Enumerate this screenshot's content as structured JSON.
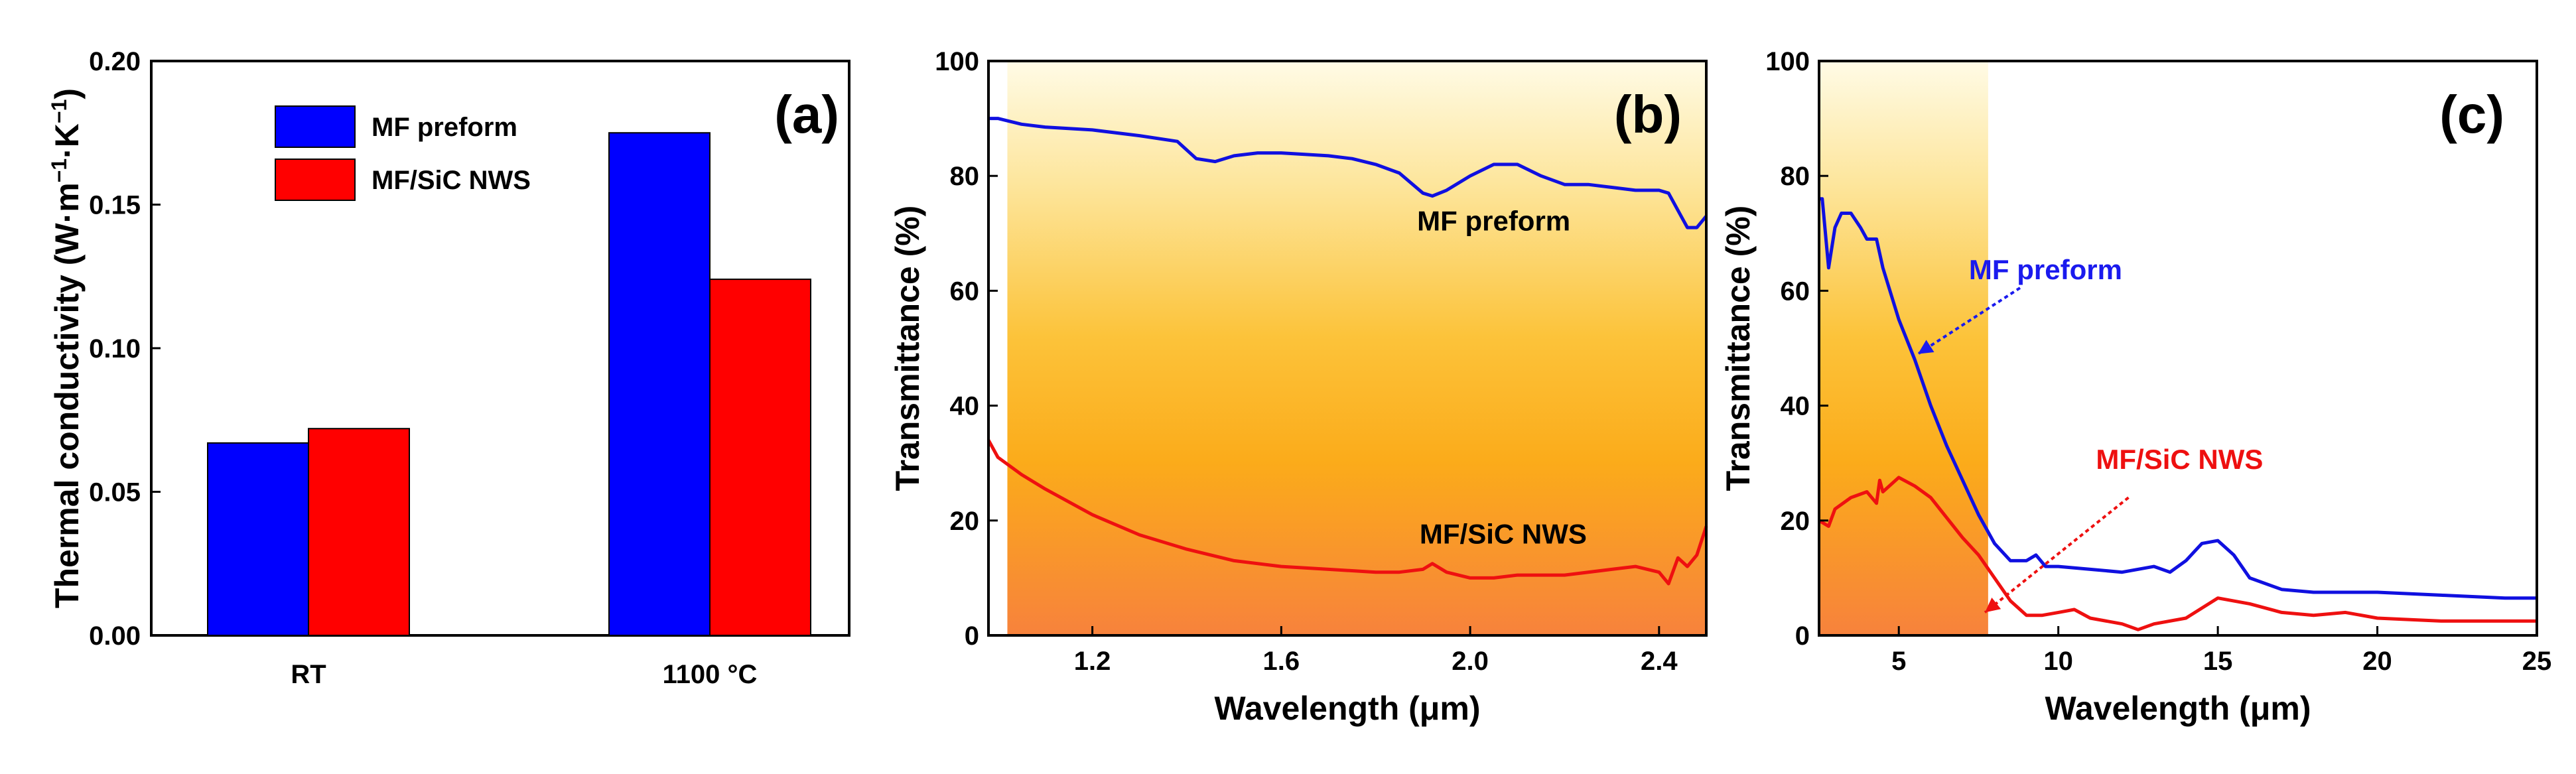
{
  "chart_data": [
    {
      "type": "bar",
      "panel_label": "(a)",
      "categories": [
        "RT",
        "1100 °C"
      ],
      "series": [
        {
          "name": "MF preform",
          "color": "#0000ff",
          "values": [
            0.067,
            0.175
          ]
        },
        {
          "name": "MF/SiC NWS",
          "color": "#ff0000",
          "values": [
            0.072,
            0.124
          ]
        }
      ],
      "ylabel_main": "Thermal conductivity  (W·m",
      "ylabel_exp1": "−1",
      "ylabel_mid": "·K",
      "ylabel_exp2": "−1",
      "ylabel_end": ")",
      "ylim": [
        0,
        0.2
      ],
      "yticks": [
        "0.00",
        "0.05",
        "0.10",
        "0.15",
        "0.20"
      ],
      "legend_position": "top-left"
    },
    {
      "type": "line",
      "panel_label": "(b)",
      "xlabel": "Wavelength (μm)",
      "ylabel": "Transmittance (%)",
      "xlim": [
        0.98,
        2.5
      ],
      "ylim": [
        0,
        100
      ],
      "xticks": [
        "1.2",
        "1.6",
        "2.0",
        "2.4"
      ],
      "yticks": [
        "0",
        "20",
        "40",
        "60",
        "80",
        "100"
      ],
      "shaded_region": [
        1.02,
        2.5
      ],
      "series": [
        {
          "name": "MF preform",
          "color": "#1010e0",
          "x": [
            0.98,
            1.0,
            1.05,
            1.1,
            1.2,
            1.3,
            1.38,
            1.42,
            1.46,
            1.5,
            1.55,
            1.6,
            1.7,
            1.75,
            1.8,
            1.85,
            1.9,
            1.92,
            1.95,
            2.0,
            2.05,
            2.1,
            2.15,
            2.2,
            2.25,
            2.3,
            2.35,
            2.4,
            2.42,
            2.44,
            2.46,
            2.48,
            2.5
          ],
          "y": [
            90,
            90,
            89,
            88.5,
            88,
            87,
            86,
            83,
            82.5,
            83.5,
            84,
            84,
            83.5,
            83,
            82,
            80.5,
            77,
            76.5,
            77.5,
            80,
            82,
            82,
            80,
            78.5,
            78.5,
            78,
            77.5,
            77.5,
            77,
            74,
            71,
            71,
            73
          ]
        },
        {
          "name": "MF/SiC NWS",
          "color": "#ee1010",
          "x": [
            0.98,
            1.0,
            1.05,
            1.1,
            1.2,
            1.3,
            1.4,
            1.5,
            1.6,
            1.7,
            1.8,
            1.85,
            1.9,
            1.92,
            1.95,
            2.0,
            2.05,
            2.1,
            2.2,
            2.3,
            2.35,
            2.4,
            2.42,
            2.44,
            2.46,
            2.48,
            2.5
          ],
          "y": [
            34,
            31,
            28,
            25.5,
            21,
            17.5,
            15,
            13,
            12,
            11.5,
            11,
            11,
            11.5,
            12.5,
            11,
            10,
            10,
            10.5,
            10.5,
            11.5,
            12,
            11,
            9,
            13.5,
            12,
            14,
            19
          ]
        }
      ],
      "annotations": [
        {
          "text": "MF preform",
          "x": 2.05,
          "y": 70.5,
          "color": "#000000"
        },
        {
          "text": "MF/SiC NWS",
          "x": 2.07,
          "y": 16,
          "color": "#000000"
        }
      ]
    },
    {
      "type": "line",
      "panel_label": "(c)",
      "xlabel": "Wavelength (μm)",
      "ylabel": "Transmittance (%)",
      "xlim": [
        2.5,
        25
      ],
      "ylim": [
        0,
        100
      ],
      "xticks": [
        "5",
        "10",
        "15",
        "20",
        "25"
      ],
      "yticks": [
        "0",
        "20",
        "40",
        "60",
        "80",
        "100"
      ],
      "shaded_region": [
        2.5,
        7.8
      ],
      "series": [
        {
          "name": "MF preform",
          "color": "#1010e0",
          "x": [
            2.5,
            2.6,
            2.8,
            3.0,
            3.2,
            3.5,
            3.8,
            4.0,
            4.3,
            4.5,
            5.0,
            5.5,
            6.0,
            6.5,
            7.0,
            7.5,
            8.0,
            8.5,
            9.0,
            9.3,
            9.6,
            10,
            11,
            12,
            13,
            13.5,
            14,
            14.5,
            15,
            15.5,
            16,
            17,
            18,
            20,
            22,
            24,
            25
          ],
          "y": [
            76,
            76,
            64,
            71,
            73.5,
            73.5,
            71,
            69,
            69,
            64,
            55,
            48,
            40,
            33,
            27,
            21,
            16,
            13,
            13,
            14,
            12,
            12,
            11.5,
            11,
            12,
            11,
            13,
            16,
            16.5,
            14,
            10,
            8,
            7.5,
            7.5,
            7,
            6.5,
            6.5
          ]
        },
        {
          "name": "MF/SiC NWS",
          "color": "#ee1010",
          "x": [
            2.5,
            2.8,
            3.0,
            3.5,
            4.0,
            4.3,
            4.4,
            4.5,
            5.0,
            5.5,
            6.0,
            7.0,
            7.5,
            8.0,
            8.5,
            9.0,
            9.5,
            10,
            10.5,
            11,
            12,
            12.5,
            13,
            14,
            15,
            16,
            17,
            18,
            19,
            20,
            22,
            24,
            25
          ],
          "y": [
            20,
            19,
            22,
            24,
            25,
            23,
            27,
            25,
            27.5,
            26,
            24,
            17,
            14,
            10,
            6,
            3.5,
            3.5,
            4,
            4.5,
            3,
            2,
            1,
            2,
            3,
            6.5,
            5.5,
            4,
            3.5,
            4,
            3,
            2.5,
            2.5,
            2.5
          ]
        }
      ],
      "annotations": [
        {
          "text": "MF preform",
          "x": 9.6,
          "y": 62,
          "color": "#1a1aee"
        },
        {
          "text": "MF/SiC NWS",
          "x": 13.8,
          "y": 29,
          "color": "#ee1010"
        }
      ]
    }
  ]
}
